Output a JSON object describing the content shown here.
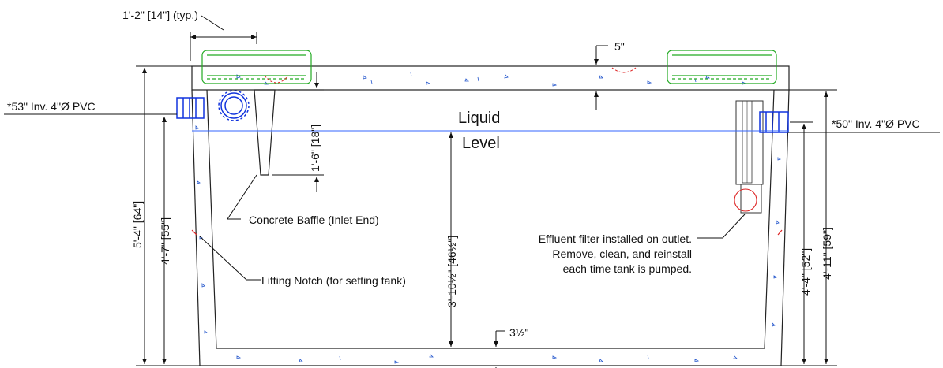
{
  "labels": {
    "typ_dim": "1'-2\" [14\"] (typ.)",
    "lid_thickness": "5\"",
    "inlet_inv": "*53\" Inv. 4\"Ø PVC",
    "outlet_inv": "*50\" Inv. 4\"Ø PVC",
    "liquid": "Liquid",
    "level": "Level",
    "baffle_drop": "1'-6\" [18\"]",
    "baffle_label": "Concrete Baffle (Inlet End)",
    "overall_height": "5'-4\" [64\"]",
    "inlet_height": "4'-7\" [55\"]",
    "liquid_depth": "3'-10½\" [46½\"]",
    "floor_thickness": "3½\"",
    "notch_label": "Lifting Notch (for setting tank)",
    "filter_line1": "Effluent filter installed on outlet.",
    "filter_line2": "Remove, clean, and reinstall",
    "filter_line3": "each time tank is pumped.",
    "outlet_height": "4'-4\" [52\"]",
    "outlet_overall": "4'-11\" [59\"]"
  },
  "colors": {
    "concrete_hatch": "#2255cc",
    "riser": "#22aa22",
    "pipe": "#1133dd",
    "liquid_line": "#3366ff",
    "fitting_red": "#dd2222"
  },
  "icons": [
    "inlet-pipe-icon",
    "inlet-tee-icon",
    "outlet-pipe-icon",
    "effluent-filter-icon",
    "riser-lid-icon"
  ]
}
